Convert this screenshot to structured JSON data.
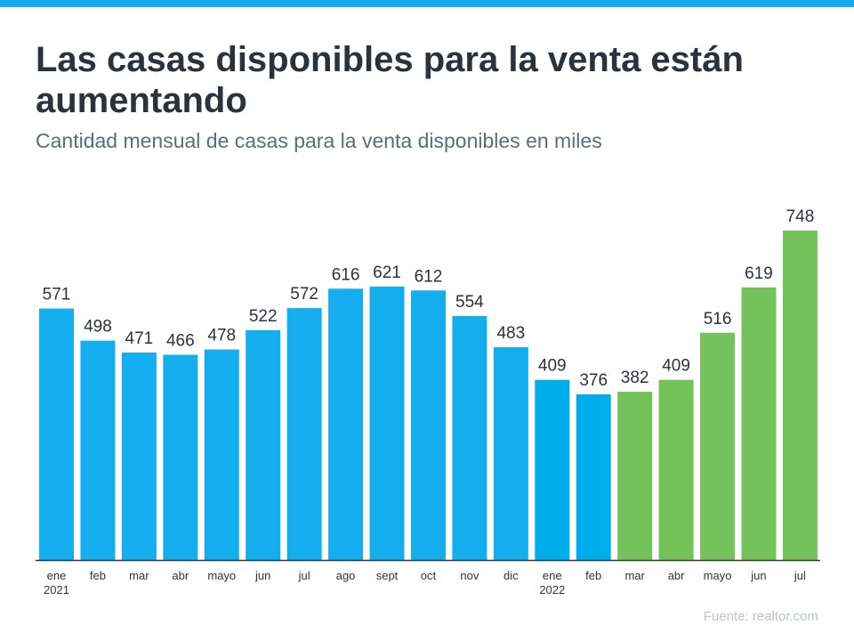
{
  "colors": {
    "stripe": "#1aa7ec",
    "bar_2021": "#14adee",
    "bar_2022_blue": "#00adec",
    "bar_2022_green": "#74c25a",
    "axis": "#333333"
  },
  "chart_data": {
    "type": "bar",
    "title": "Las casas disponibles para la venta están aumentando",
    "subtitle": "Cantidad mensual de casas para la venta disponibles en miles",
    "categories": [
      {
        "month": "ene",
        "year": "2021"
      },
      {
        "month": "feb",
        "year": ""
      },
      {
        "month": "mar",
        "year": ""
      },
      {
        "month": "abr",
        "year": ""
      },
      {
        "month": "mayo",
        "year": ""
      },
      {
        "month": "jun",
        "year": ""
      },
      {
        "month": "jul",
        "year": ""
      },
      {
        "month": "ago",
        "year": ""
      },
      {
        "month": "sept",
        "year": ""
      },
      {
        "month": "oct",
        "year": ""
      },
      {
        "month": "nov",
        "year": ""
      },
      {
        "month": "dic",
        "year": ""
      },
      {
        "month": "ene",
        "year": "2022"
      },
      {
        "month": "feb",
        "year": ""
      },
      {
        "month": "mar",
        "year": ""
      },
      {
        "month": "abr",
        "year": ""
      },
      {
        "month": "mayo",
        "year": ""
      },
      {
        "month": "jun",
        "year": ""
      },
      {
        "month": "jul",
        "year": ""
      }
    ],
    "values": [
      571,
      498,
      471,
      466,
      478,
      522,
      572,
      616,
      621,
      612,
      554,
      483,
      409,
      376,
      382,
      409,
      516,
      619,
      748
    ],
    "bar_color_groups": [
      "bar_2021",
      "bar_2021",
      "bar_2021",
      "bar_2021",
      "bar_2021",
      "bar_2021",
      "bar_2021",
      "bar_2021",
      "bar_2021",
      "bar_2021",
      "bar_2021",
      "bar_2021",
      "bar_2022_blue",
      "bar_2022_blue",
      "bar_2022_green",
      "bar_2022_green",
      "bar_2022_green",
      "bar_2022_green",
      "bar_2022_green"
    ],
    "ylim": [
      0,
      748
    ],
    "grid": false,
    "data_labels": true,
    "source": "Fuente:  realtor.com"
  }
}
